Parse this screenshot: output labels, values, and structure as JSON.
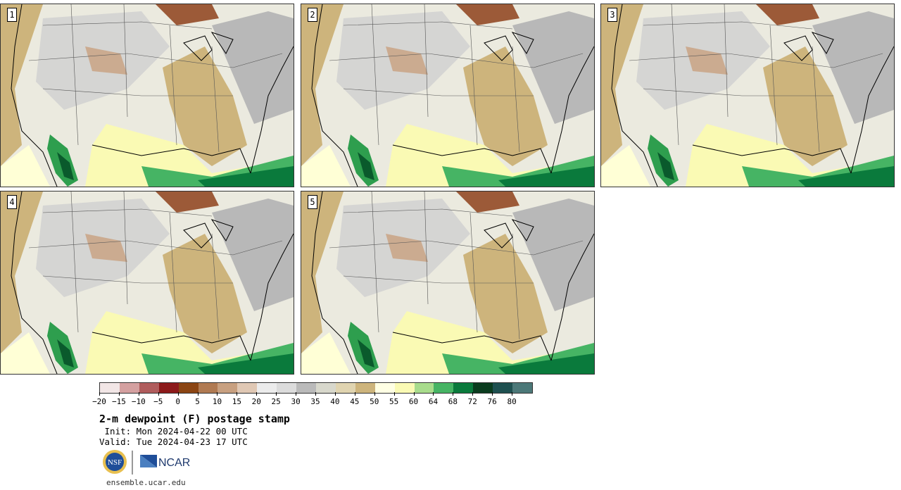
{
  "panels": [
    {
      "label": "1"
    },
    {
      "label": "2"
    },
    {
      "label": "3"
    },
    {
      "label": "4"
    },
    {
      "label": "5"
    }
  ],
  "colorbar": {
    "colors": [
      "#f2e6e6",
      "#d4a0a0",
      "#b05c5c",
      "#8c1a1a",
      "#8b4513",
      "#b07a52",
      "#c8a080",
      "#e0c8b4",
      "#ececec",
      "#dcdcdc",
      "#bababa",
      "#d8d8cc",
      "#e0d4b0",
      "#cdb47c",
      "#ffffe4",
      "#fafab4",
      "#a8dc8c",
      "#46b464",
      "#0a7a3c",
      "#0a3c1e",
      "#1e5050",
      "#4c7878"
    ],
    "ticks": [
      "−20",
      "−15",
      "−10",
      "−5",
      "0",
      "5",
      "10",
      "15",
      "20",
      "25",
      "30",
      "35",
      "40",
      "45",
      "50",
      "55",
      "60",
      "64",
      "68",
      "72",
      "76",
      "80"
    ]
  },
  "title": "2-m dewpoint (F) postage stamp",
  "init": " Init: Mon 2024-04-22 00 UTC",
  "valid": "Valid: Tue 2024-04-23 17 UTC",
  "logos": {
    "nsf": "NSF",
    "ncar": "NCAR"
  },
  "site": "ensemble.ucar.edu"
}
